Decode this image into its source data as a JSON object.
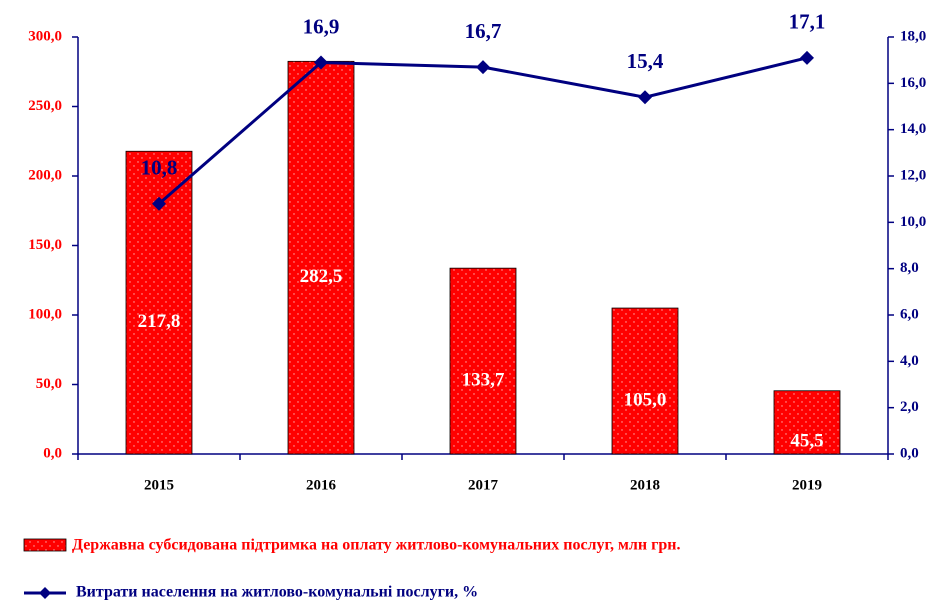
{
  "chart_data": {
    "type": "bar_line",
    "categories": [
      "2015",
      "2016",
      "2017",
      "2018",
      "2019"
    ],
    "series": [
      {
        "name": "Державна субсидована підтримка на оплату житлово-комунальних послуг, млн грн.",
        "type": "bar",
        "color": "#ff0000",
        "values": [
          217.8,
          282.5,
          133.7,
          105.0,
          45.5
        ],
        "value_labels": [
          "217,8",
          "282,5",
          "133,7",
          "105,0",
          "45,5"
        ]
      },
      {
        "name": "Витрати населення на житлово-комунальні послуги, %",
        "type": "line",
        "axis": "y2",
        "color": "#000080",
        "values": [
          10.8,
          16.9,
          16.7,
          15.4,
          17.1
        ],
        "value_labels": [
          "10,8",
          "16,9",
          "16,7",
          "15,4",
          "17,1"
        ]
      }
    ],
    "ylim": [
      0,
      300
    ],
    "yticks": [
      {
        "value": 0,
        "label": "0,0"
      },
      {
        "value": 50,
        "label": "50,0"
      },
      {
        "value": 100,
        "label": "100,0"
      },
      {
        "value": 150,
        "label": "150,0"
      },
      {
        "value": 200,
        "label": "200,0"
      },
      {
        "value": 250,
        "label": "250,0"
      },
      {
        "value": 300,
        "label": "300,0"
      }
    ],
    "y2lim": [
      0,
      18
    ],
    "y2ticks": [
      {
        "value": 0,
        "label": "0,0"
      },
      {
        "value": 2,
        "label": "2,0"
      },
      {
        "value": 4,
        "label": "4,0"
      },
      {
        "value": 6,
        "label": "6,0"
      },
      {
        "value": 8,
        "label": "8,0"
      },
      {
        "value": 10,
        "label": "10,0"
      },
      {
        "value": 12,
        "label": "12,0"
      },
      {
        "value": 14,
        "label": "14,0"
      },
      {
        "value": 16,
        "label": "16,0"
      },
      {
        "value": 18,
        "label": "18,0"
      }
    ],
    "grid": false
  }
}
